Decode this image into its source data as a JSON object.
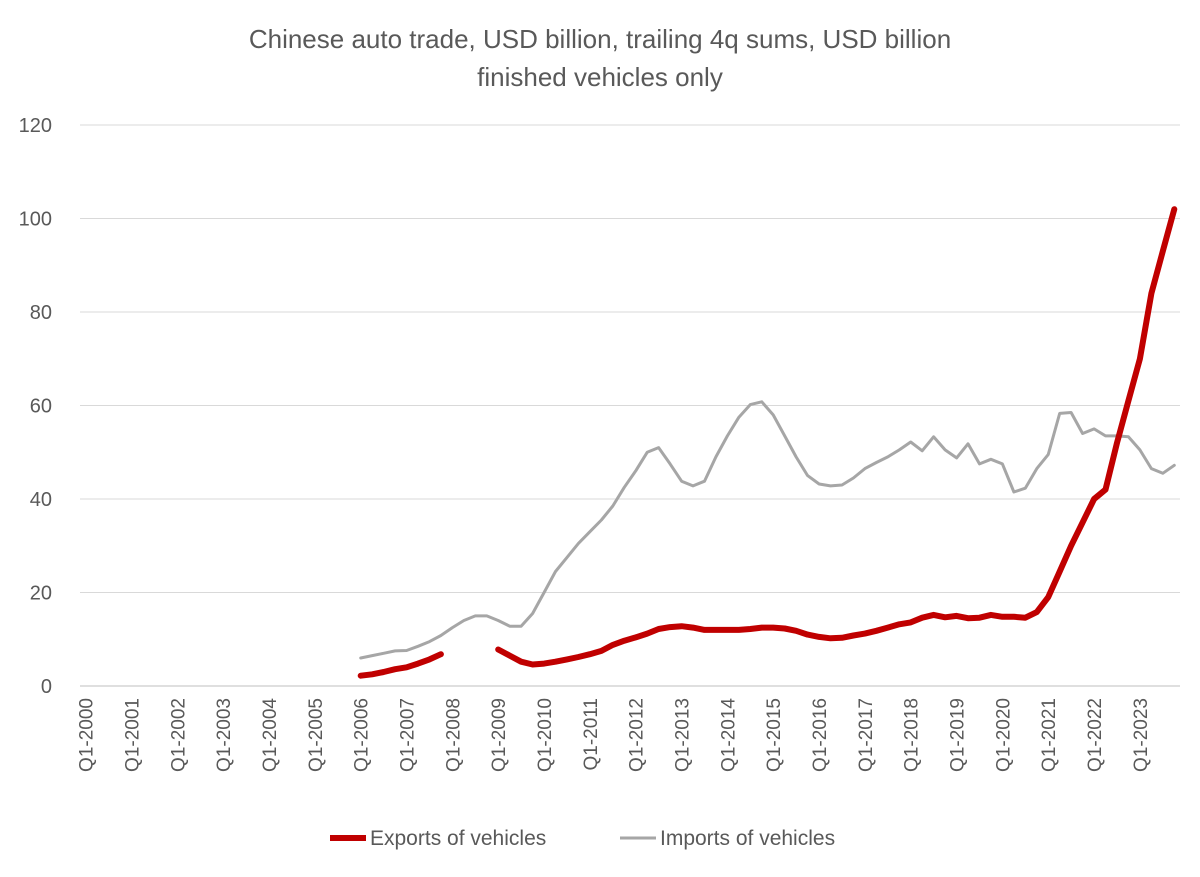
{
  "chart_data": {
    "type": "line",
    "title": "Chinese auto trade, USD billion, trailing 4q sums, USD billion",
    "subtitle": "finished vehicles only",
    "categories": [
      "Q1-2000",
      null,
      null,
      null,
      "Q1-2001",
      null,
      null,
      null,
      "Q1-2002",
      null,
      null,
      null,
      "Q1-2003",
      null,
      null,
      null,
      "Q1-2004",
      null,
      null,
      null,
      "Q1-2005",
      null,
      null,
      null,
      "Q1-2006",
      null,
      null,
      null,
      "Q1-2007",
      null,
      null,
      null,
      "Q1-2008",
      null,
      null,
      null,
      "Q1-2009",
      null,
      null,
      null,
      "Q1-2010",
      null,
      null,
      null,
      "Q1-2011",
      null,
      null,
      null,
      "Q1-2012",
      null,
      null,
      null,
      "Q1-2013",
      null,
      null,
      null,
      "Q1-2014",
      null,
      null,
      null,
      "Q1-2015",
      null,
      null,
      null,
      "Q1-2016",
      null,
      null,
      null,
      "Q1-2017",
      null,
      null,
      null,
      "Q1-2018",
      null,
      null,
      null,
      "Q1-2019",
      null,
      null,
      null,
      "Q1-2020",
      null,
      null,
      null,
      "Q1-2021",
      null,
      null,
      null,
      "Q1-2022",
      null,
      null,
      null,
      "Q1-2023",
      null,
      null,
      null
    ],
    "series": [
      {
        "name": "Exports of vehicles",
        "color": "#c00000",
        "width": 6,
        "values": [
          null,
          null,
          null,
          null,
          null,
          null,
          null,
          null,
          null,
          null,
          null,
          null,
          null,
          null,
          null,
          null,
          null,
          null,
          null,
          null,
          null,
          null,
          null,
          null,
          2.2,
          2.5,
          3.0,
          3.6,
          4.0,
          4.8,
          5.7,
          6.8,
          null,
          null,
          null,
          null,
          7.8,
          6.5,
          5.2,
          4.6,
          4.8,
          5.2,
          5.7,
          6.2,
          6.8,
          7.5,
          8.8,
          9.7,
          10.4,
          11.2,
          12.2,
          12.6,
          12.8,
          12.5,
          12.0,
          12.0,
          12.0,
          12.0,
          12.2,
          12.5,
          12.5,
          12.3,
          11.8,
          11.0,
          10.5,
          10.2,
          10.3,
          10.8,
          11.2,
          11.8,
          12.5,
          13.2,
          13.6,
          14.6,
          15.2,
          14.7,
          15.0,
          14.5,
          14.6,
          15.2,
          14.8,
          14.8,
          14.6,
          15.8,
          19.0,
          24.5,
          30.0,
          35.0,
          40.0,
          42.0,
          52.0,
          61.0,
          70.0,
          84.0,
          93.0,
          102.0
        ]
      },
      {
        "name": "Imports of vehicles",
        "color": "#a6a6a6",
        "width": 3,
        "values": [
          null,
          null,
          null,
          null,
          null,
          null,
          null,
          null,
          null,
          null,
          null,
          null,
          null,
          null,
          null,
          null,
          null,
          null,
          null,
          null,
          null,
          null,
          null,
          null,
          6.0,
          6.5,
          7.0,
          7.5,
          7.6,
          8.5,
          9.5,
          10.8,
          12.5,
          14.0,
          15.0,
          15.0,
          14.0,
          12.8,
          12.8,
          15.5,
          20.0,
          24.5,
          27.5,
          30.5,
          33.0,
          35.5,
          38.5,
          42.5,
          46.0,
          50.0,
          51.0,
          47.5,
          43.8,
          42.8,
          43.8,
          49.0,
          53.5,
          57.5,
          60.2,
          60.8,
          58.0,
          53.5,
          49.0,
          45.0,
          43.2,
          42.8,
          43.0,
          44.5,
          46.5,
          47.8,
          49.0,
          50.5,
          52.2,
          50.3,
          53.3,
          50.5,
          48.8,
          51.8,
          47.5,
          48.5,
          47.5,
          41.5,
          42.3,
          46.5,
          49.5,
          58.3,
          58.5,
          54.0,
          55.0,
          53.5,
          53.5,
          53.3,
          50.5,
          46.5,
          45.5,
          47.2
        ]
      }
    ],
    "ylim": [
      0,
      120
    ],
    "yticks": [
      0,
      20,
      40,
      60,
      80,
      100,
      120
    ],
    "grid": true,
    "legend": "bottom"
  }
}
